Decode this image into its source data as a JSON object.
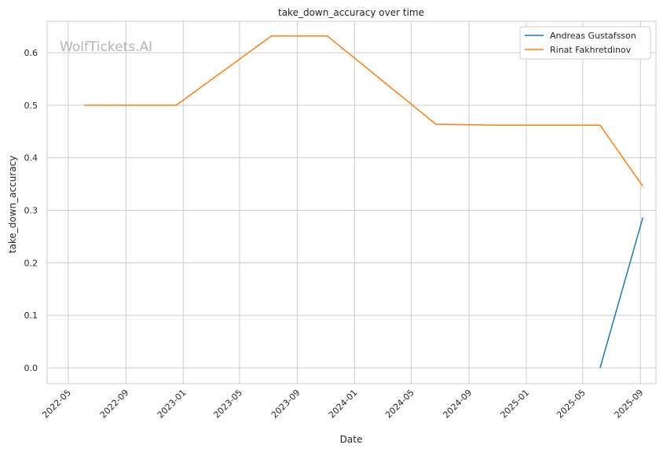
{
  "chart_data": {
    "type": "line",
    "title": "take_down_accuracy over time",
    "xlabel": "Date",
    "ylabel": "take_down_accuracy",
    "watermark": "WolfTickets.AI",
    "xlim": [
      "2022-03-17",
      "2025-10-04"
    ],
    "ylim": [
      -0.03,
      0.66
    ],
    "x_ticks": [
      "2022-05",
      "2022-09",
      "2023-01",
      "2023-05",
      "2023-09",
      "2024-01",
      "2024-05",
      "2024-09",
      "2025-01",
      "2025-05",
      "2025-09"
    ],
    "y_ticks": [
      "0.0",
      "0.1",
      "0.2",
      "0.3",
      "0.4",
      "0.5",
      "0.6"
    ],
    "grid": true,
    "legend": "top-right",
    "series": [
      {
        "name": "Andreas Gustafsson",
        "color": "#1f77b4",
        "points": [
          {
            "x": "2025-06-07",
            "y": 0.0
          },
          {
            "x": "2025-09-06",
            "y": 0.286
          }
        ]
      },
      {
        "name": "Rinat Fakhretdinov",
        "color": "#ff7f0e",
        "points": [
          {
            "x": "2022-06-04",
            "y": 0.5
          },
          {
            "x": "2022-12-17",
            "y": 0.5
          },
          {
            "x": "2023-07-08",
            "y": 0.632
          },
          {
            "x": "2023-11-04",
            "y": 0.632
          },
          {
            "x": "2024-06-22",
            "y": 0.464
          },
          {
            "x": "2024-10-26",
            "y": 0.462
          },
          {
            "x": "2025-06-07",
            "y": 0.462
          },
          {
            "x": "2025-09-06",
            "y": 0.346
          }
        ]
      }
    ]
  }
}
